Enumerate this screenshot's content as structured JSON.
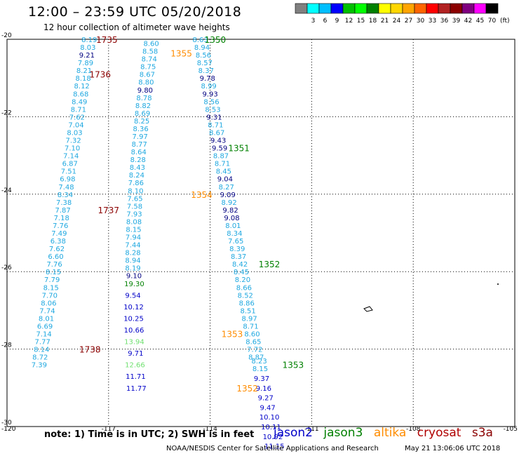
{
  "header": {
    "title": "12:00 – 23:59 UTC 05/20/2018",
    "subtitle": "12 hour collection of altimeter wave heights"
  },
  "colorbar": {
    "unit": "(ft)",
    "swatches": [
      {
        "color": "#808080",
        "label": ""
      },
      {
        "color": "#00ffff",
        "label": "3"
      },
      {
        "color": "#00bfff",
        "label": "6"
      },
      {
        "color": "#0000ff",
        "label": "9"
      },
      {
        "color": "#00c000",
        "label": "12"
      },
      {
        "color": "#00ff00",
        "label": "15"
      },
      {
        "color": "#008000",
        "label": "18"
      },
      {
        "color": "#ffff00",
        "label": "21"
      },
      {
        "color": "#ffd700",
        "label": "24"
      },
      {
        "color": "#ffa500",
        "label": "27"
      },
      {
        "color": "#ff6600",
        "label": "30"
      },
      {
        "color": "#ff0000",
        "label": "33"
      },
      {
        "color": "#b22222",
        "label": "36"
      },
      {
        "color": "#8b0000",
        "label": "39"
      },
      {
        "color": "#800080",
        "label": "42"
      },
      {
        "color": "#ff00ff",
        "label": "45"
      },
      {
        "color": "#000000",
        "label": "70"
      }
    ]
  },
  "axes": {
    "lat_labels": [
      "-20",
      "-22",
      "-24",
      "-26",
      "-28",
      "-30"
    ],
    "lon_labels": [
      "-120",
      "-117",
      "-114",
      "-111",
      "-108",
      "-105"
    ],
    "lat_range": [
      -30,
      -20
    ],
    "lon_range": [
      -120,
      -105
    ]
  },
  "colors": {
    "jason2": "#0000c8",
    "jason3": "#008000",
    "altika": "#ff8c00",
    "cryosat": "#8b0000",
    "s3a": "#8b0000",
    "track_light": "#1fa8e0",
    "swh_high": "#70e070"
  },
  "tracks": [
    {
      "satellite": "altika",
      "obs": [
        {
          "lon": -117.57,
          "lat": -20.0,
          "v": "8.19"
        },
        {
          "lon": -117.61,
          "lat": -20.2,
          "v": "8.03"
        },
        {
          "lon": -117.64,
          "lat": -20.4,
          "v": "9.21",
          "c": "blk"
        },
        {
          "lon": -117.68,
          "lat": -20.6,
          "v": "7.89"
        },
        {
          "lon": -117.72,
          "lat": -20.8,
          "v": "8.21"
        },
        {
          "lon": -117.75,
          "lat": -21.0,
          "v": "8.18"
        },
        {
          "lon": -117.79,
          "lat": -21.2,
          "v": "8.12"
        },
        {
          "lon": -117.82,
          "lat": -21.4,
          "v": "8.68"
        },
        {
          "lon": -117.86,
          "lat": -21.6,
          "v": "8.49"
        },
        {
          "lon": -117.89,
          "lat": -21.8,
          "v": "8.71"
        },
        {
          "lon": -117.93,
          "lat": -22.0,
          "v": "7.62"
        },
        {
          "lon": -117.96,
          "lat": -22.2,
          "v": "7.04"
        },
        {
          "lon": -118.0,
          "lat": -22.4,
          "v": "8.03"
        },
        {
          "lon": -118.04,
          "lat": -22.6,
          "v": "7.32"
        },
        {
          "lon": -118.07,
          "lat": -22.8,
          "v": "7.10"
        },
        {
          "lon": -118.11,
          "lat": -23.0,
          "v": "7.14"
        },
        {
          "lon": -118.14,
          "lat": -23.2,
          "v": "6.87"
        },
        {
          "lon": -118.18,
          "lat": -23.4,
          "v": "7.51"
        },
        {
          "lon": -118.21,
          "lat": -23.6,
          "v": "6.98"
        },
        {
          "lon": -118.25,
          "lat": -23.8,
          "v": "7.48"
        },
        {
          "lon": -118.28,
          "lat": -24.0,
          "v": "8.34"
        },
        {
          "lon": -118.32,
          "lat": -24.2,
          "v": "7.38"
        },
        {
          "lon": -118.35,
          "lat": -24.4,
          "v": "7.87"
        },
        {
          "lon": -118.39,
          "lat": -24.6,
          "v": "7.18"
        },
        {
          "lon": -118.42,
          "lat": -24.8,
          "v": "7.76"
        },
        {
          "lon": -118.46,
          "lat": -25.0,
          "v": "7.49"
        },
        {
          "lon": -118.49,
          "lat": -25.2,
          "v": "6.38"
        },
        {
          "lon": -118.53,
          "lat": -25.4,
          "v": "7.62"
        },
        {
          "lon": -118.56,
          "lat": -25.6,
          "v": "6.60"
        },
        {
          "lon": -118.6,
          "lat": -25.8,
          "v": "7.76"
        },
        {
          "lon": -118.63,
          "lat": -26.0,
          "v": "8.15"
        },
        {
          "lon": -118.67,
          "lat": -26.2,
          "v": "7.79"
        },
        {
          "lon": -118.7,
          "lat": -26.4,
          "v": "8.15"
        },
        {
          "lon": -118.74,
          "lat": -26.6,
          "v": "7.70"
        },
        {
          "lon": -118.77,
          "lat": -26.8,
          "v": "8.06"
        },
        {
          "lon": -118.81,
          "lat": -27.0,
          "v": "7.74"
        },
        {
          "lon": -118.84,
          "lat": -27.2,
          "v": "8.01"
        },
        {
          "lon": -118.88,
          "lat": -27.4,
          "v": "6.69"
        },
        {
          "lon": -118.91,
          "lat": -27.6,
          "v": "7.14"
        },
        {
          "lon": -118.95,
          "lat": -27.8,
          "v": "7.77"
        },
        {
          "lon": -118.98,
          "lat": -28.0,
          "v": "8.14"
        },
        {
          "lon": -119.02,
          "lat": -28.2,
          "v": "8.72"
        },
        {
          "lon": -119.05,
          "lat": -28.4,
          "v": "7.39"
        }
      ]
    },
    {
      "satellite": "altika",
      "obs": [
        {
          "lon": -115.74,
          "lat": -20.1,
          "v": "8.60"
        },
        {
          "lon": -115.77,
          "lat": -20.3,
          "v": "8.58"
        },
        {
          "lon": -115.8,
          "lat": -20.5,
          "v": "8.74"
        },
        {
          "lon": -115.83,
          "lat": -20.7,
          "v": "8.75"
        },
        {
          "lon": -115.86,
          "lat": -20.9,
          "v": "8.67"
        },
        {
          "lon": -115.89,
          "lat": -21.1,
          "v": "8.80"
        },
        {
          "lon": -115.92,
          "lat": -21.3,
          "v": "9.80",
          "c": "blk"
        },
        {
          "lon": -115.95,
          "lat": -21.5,
          "v": "8.78"
        },
        {
          "lon": -115.98,
          "lat": -21.7,
          "v": "8.82"
        },
        {
          "lon": -116.0,
          "lat": -21.9,
          "v": "8.69"
        },
        {
          "lon": -116.02,
          "lat": -22.1,
          "v": "8.25"
        },
        {
          "lon": -116.05,
          "lat": -22.3,
          "v": "8.36"
        },
        {
          "lon": -116.07,
          "lat": -22.5,
          "v": "7.97"
        },
        {
          "lon": -116.09,
          "lat": -22.7,
          "v": "8.77"
        },
        {
          "lon": -116.11,
          "lat": -22.9,
          "v": "8.64"
        },
        {
          "lon": -116.13,
          "lat": -23.1,
          "v": "8.28"
        },
        {
          "lon": -116.15,
          "lat": -23.3,
          "v": "8.43"
        },
        {
          "lon": -116.17,
          "lat": -23.5,
          "v": "8.24"
        },
        {
          "lon": -116.19,
          "lat": -23.7,
          "v": "7.86"
        },
        {
          "lon": -116.2,
          "lat": -23.9,
          "v": "8.10"
        },
        {
          "lon": -116.22,
          "lat": -24.1,
          "v": "7.65"
        },
        {
          "lon": -116.23,
          "lat": -24.3,
          "v": "7.58"
        },
        {
          "lon": -116.24,
          "lat": -24.5,
          "v": "7.93"
        },
        {
          "lon": -116.25,
          "lat": -24.7,
          "v": "8.08"
        },
        {
          "lon": -116.26,
          "lat": -24.9,
          "v": "8.15"
        },
        {
          "lon": -116.27,
          "lat": -25.1,
          "v": "7.94"
        },
        {
          "lon": -116.28,
          "lat": -25.3,
          "v": "7.44"
        },
        {
          "lon": -116.28,
          "lat": -25.5,
          "v": "8.28"
        },
        {
          "lon": -116.28,
          "lat": -25.7,
          "v": "8.94"
        },
        {
          "lon": -116.28,
          "lat": -25.9,
          "v": "8.19"
        },
        {
          "lon": -116.25,
          "lat": -26.1,
          "v": "9.10",
          "c": "blk"
        },
        {
          "lon": -116.24,
          "lat": -26.3,
          "v": "19.30",
          "c": "grn"
        }
      ]
    },
    {
      "satellite": "altika",
      "obs": [
        {
          "lon": -114.29,
          "lat": -20.0,
          "v": "8.63"
        },
        {
          "lon": -114.24,
          "lat": -20.2,
          "v": "8.94"
        },
        {
          "lon": -114.2,
          "lat": -20.4,
          "v": "8.56"
        },
        {
          "lon": -114.16,
          "lat": -20.6,
          "v": "8.57"
        },
        {
          "lon": -114.12,
          "lat": -20.8,
          "v": "8.37"
        },
        {
          "lon": -114.08,
          "lat": -21.0,
          "v": "9.78",
          "c": "blk"
        },
        {
          "lon": -114.04,
          "lat": -21.2,
          "v": "8.99"
        },
        {
          "lon": -114.0,
          "lat": -21.4,
          "v": "9.93",
          "c": "blk"
        },
        {
          "lon": -113.96,
          "lat": -21.6,
          "v": "8.56"
        },
        {
          "lon": -113.92,
          "lat": -21.8,
          "v": "8.53"
        },
        {
          "lon": -113.88,
          "lat": -22.0,
          "v": "9.31",
          "c": "blk"
        },
        {
          "lon": -113.84,
          "lat": -22.2,
          "v": "8.71"
        },
        {
          "lon": -113.8,
          "lat": -22.4,
          "v": "8.67"
        },
        {
          "lon": -113.76,
          "lat": -22.6,
          "v": "9.43",
          "c": "blk"
        },
        {
          "lon": -113.72,
          "lat": -22.8,
          "v": "9.59",
          "c": "blk"
        },
        {
          "lon": -113.68,
          "lat": -23.0,
          "v": "8.87"
        },
        {
          "lon": -113.64,
          "lat": -23.2,
          "v": "8.71"
        },
        {
          "lon": -113.6,
          "lat": -23.4,
          "v": "8.45"
        },
        {
          "lon": -113.56,
          "lat": -23.6,
          "v": "9.04",
          "c": "blk"
        },
        {
          "lon": -113.52,
          "lat": -23.8,
          "v": "8.27"
        },
        {
          "lon": -113.48,
          "lat": -24.0,
          "v": "9.09",
          "c": "blk"
        },
        {
          "lon": -113.44,
          "lat": -24.2,
          "v": "8.92"
        },
        {
          "lon": -113.4,
          "lat": -24.4,
          "v": "9.82",
          "c": "blk"
        },
        {
          "lon": -113.36,
          "lat": -24.6,
          "v": "9.08",
          "c": "blk"
        },
        {
          "lon": -113.32,
          "lat": -24.8,
          "v": "8.01"
        },
        {
          "lon": -113.28,
          "lat": -25.0,
          "v": "8.34"
        },
        {
          "lon": -113.24,
          "lat": -25.2,
          "v": "7.65"
        },
        {
          "lon": -113.2,
          "lat": -25.4,
          "v": "8.39"
        },
        {
          "lon": -113.16,
          "lat": -25.6,
          "v": "8.37"
        },
        {
          "lon": -113.12,
          "lat": -25.8,
          "v": "8.42"
        },
        {
          "lon": -113.08,
          "lat": -26.0,
          "v": "8.45"
        },
        {
          "lon": -113.04,
          "lat": -26.2,
          "v": "8.20"
        },
        {
          "lon": -113.0,
          "lat": -26.4,
          "v": "8.66"
        },
        {
          "lon": -112.96,
          "lat": -26.6,
          "v": "8.52"
        },
        {
          "lon": -112.92,
          "lat": -26.8,
          "v": "8.86"
        },
        {
          "lon": -112.88,
          "lat": -27.0,
          "v": "8.51"
        },
        {
          "lon": -112.84,
          "lat": -27.2,
          "v": "8.97"
        },
        {
          "lon": -112.8,
          "lat": -27.4,
          "v": "8.71"
        },
        {
          "lon": -112.76,
          "lat": -27.6,
          "v": "8.60"
        },
        {
          "lon": -112.72,
          "lat": -27.8,
          "v": "8.65"
        },
        {
          "lon": -112.68,
          "lat": -28.0,
          "v": "7.72"
        },
        {
          "lon": -112.64,
          "lat": -28.2,
          "v": "8.87"
        }
      ]
    },
    {
      "satellite": "jason2",
      "obs": [
        {
          "lon": -116.28,
          "lat": -26.6,
          "v": "9.54"
        },
        {
          "lon": -116.26,
          "lat": -26.9,
          "v": "10.12"
        },
        {
          "lon": -116.26,
          "lat": -27.2,
          "v": "10.25"
        },
        {
          "lon": -116.25,
          "lat": -27.5,
          "v": "10.66"
        },
        {
          "lon": -116.24,
          "lat": -27.8,
          "v": "13.94",
          "c": "lgrn"
        },
        {
          "lon": -116.2,
          "lat": -28.1,
          "v": "9.71"
        },
        {
          "lon": -116.22,
          "lat": -28.4,
          "v": "12.66",
          "c": "lgrn"
        },
        {
          "lon": -116.2,
          "lat": -28.7,
          "v": "11.71"
        },
        {
          "lon": -116.18,
          "lat": -29.0,
          "v": "11.77"
        }
      ]
    },
    {
      "satellite": "jason2",
      "obs": [
        {
          "lon": -112.55,
          "lat": -28.3,
          "v": "8.23",
          "c": "lt"
        },
        {
          "lon": -112.52,
          "lat": -28.5,
          "v": "8.15",
          "c": "lt"
        },
        {
          "lon": -112.48,
          "lat": -28.75,
          "v": "9.37"
        },
        {
          "lon": -112.42,
          "lat": -29.0,
          "v": "9.16"
        },
        {
          "lon": -112.36,
          "lat": -29.25,
          "v": "9.27"
        },
        {
          "lon": -112.3,
          "lat": -29.5,
          "v": "9.47"
        },
        {
          "lon": -112.25,
          "lat": -29.75,
          "v": "10.10"
        },
        {
          "lon": -112.2,
          "lat": -30.0,
          "v": "10.11"
        },
        {
          "lon": -112.15,
          "lat": -30.25,
          "v": "10.92"
        },
        {
          "lon": -112.1,
          "lat": -30.5,
          "v": "11.15"
        }
      ]
    }
  ],
  "time_labels": [
    {
      "lon": -117.05,
      "lat": -20.0,
      "text": "1735",
      "sat": "cryosat"
    },
    {
      "lon": -117.25,
      "lat": -20.9,
      "text": "1736",
      "sat": "cryosat"
    },
    {
      "lon": -117.0,
      "lat": -24.4,
      "text": "1737",
      "sat": "cryosat"
    },
    {
      "lon": -117.55,
      "lat": -28.0,
      "text": "1738",
      "sat": "cryosat"
    },
    {
      "lon": -113.85,
      "lat": -20.0,
      "text": "1350",
      "sat": "jason3"
    },
    {
      "lon": -114.85,
      "lat": -20.35,
      "text": "1355",
      "sat": "altika"
    },
    {
      "lon": -113.15,
      "lat": -22.8,
      "text": "1351",
      "sat": "jason3"
    },
    {
      "lon": -114.25,
      "lat": -24.0,
      "text": "1354",
      "sat": "altika"
    },
    {
      "lon": -112.25,
      "lat": -25.8,
      "text": "1352",
      "sat": "jason3"
    },
    {
      "lon": -113.35,
      "lat": -27.6,
      "text": "1353",
      "sat": "altika"
    },
    {
      "lon": -111.55,
      "lat": -28.4,
      "text": "1353",
      "sat": "jason3"
    },
    {
      "lon": -112.9,
      "lat": -29.0,
      "text": "1352",
      "sat": "altika"
    }
  ],
  "legend": {
    "note": "note: 1) Time is in UTC; 2) SWH is in feet",
    "satellites": [
      "jason2",
      "jason3",
      "altika",
      "cryosat",
      "s3a"
    ]
  },
  "footer": {
    "credit": "NOAA/NESDIS Center for Satellite Applications and Research",
    "issued": "May 21 13:06:06 UTC 2018"
  }
}
